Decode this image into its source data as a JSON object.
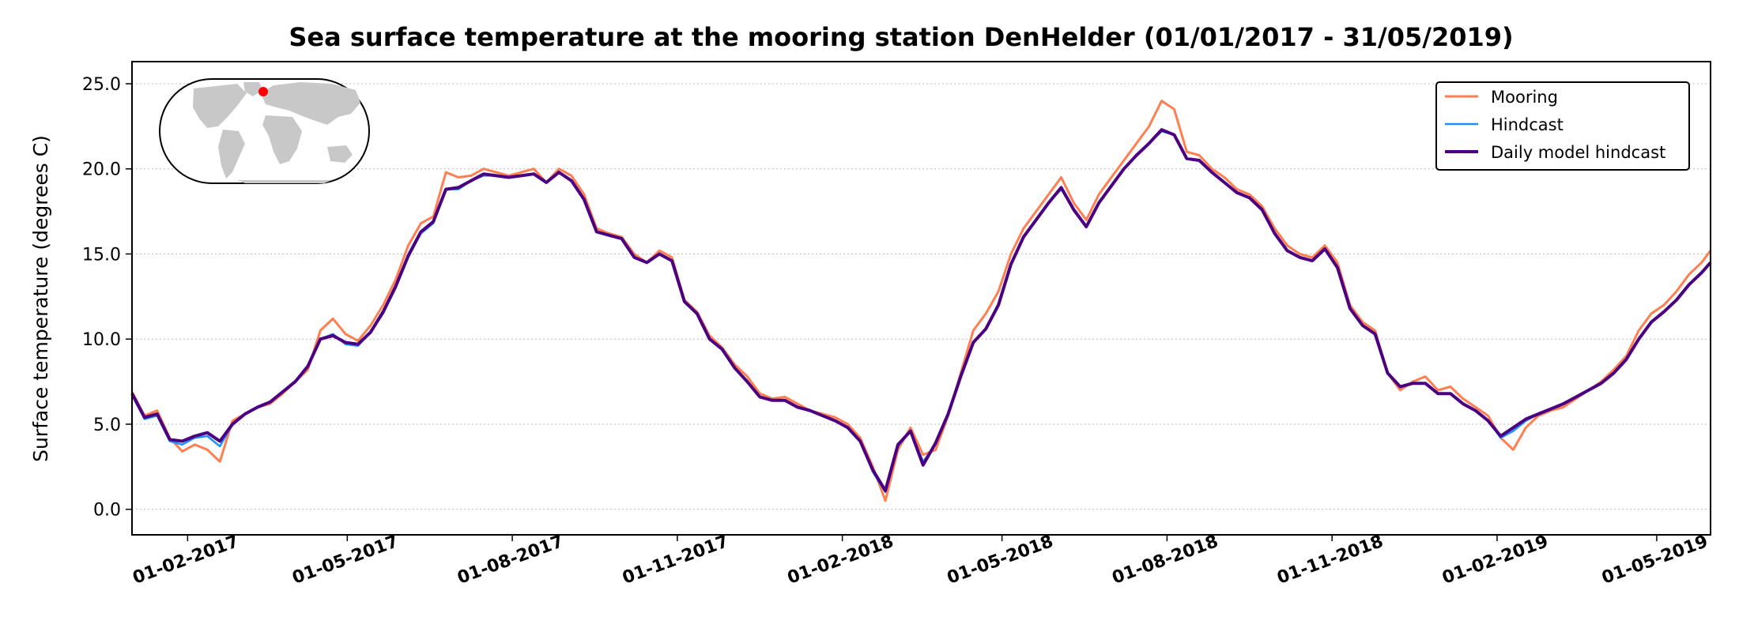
{
  "chart_data": {
    "type": "line",
    "title": "Sea surface temperature at the mooring station DenHelder (01/01/2017 - 31/05/2019)",
    "xlabel": "",
    "ylabel": "Surface temperature (degrees C)",
    "xlim": [
      "2017-01-01",
      "2019-05-31"
    ],
    "ylim": [
      -1.5,
      26.3
    ],
    "yticks": [
      "0.0",
      "5.0",
      "10.0",
      "15.0",
      "20.0",
      "25.0"
    ],
    "xticks": [
      "01-02-2017",
      "01-05-2017",
      "01-08-2017",
      "01-11-2017",
      "01-02-2018",
      "01-05-2018",
      "01-08-2018",
      "01-11-2018",
      "01-02-2019",
      "01-05-2019"
    ],
    "grid": "horizontal dotted",
    "legend_placement": "top-right",
    "inset": "world map with red marker at station location",
    "colors": {
      "Mooring": "#ff7f50",
      "Hindcast": "#1e90ff",
      "Daily model hindcast": "#4b0082",
      "marker": "#ff0000"
    },
    "x": [
      "2017-01-01",
      "2017-01-08",
      "2017-01-15",
      "2017-01-22",
      "2017-01-29",
      "2017-02-05",
      "2017-02-12",
      "2017-02-19",
      "2017-02-26",
      "2017-03-05",
      "2017-03-12",
      "2017-03-19",
      "2017-03-26",
      "2017-04-02",
      "2017-04-09",
      "2017-04-16",
      "2017-04-23",
      "2017-04-30",
      "2017-05-07",
      "2017-05-14",
      "2017-05-21",
      "2017-05-28",
      "2017-06-04",
      "2017-06-11",
      "2017-06-18",
      "2017-06-25",
      "2017-07-02",
      "2017-07-09",
      "2017-07-16",
      "2017-07-23",
      "2017-07-30",
      "2017-08-06",
      "2017-08-13",
      "2017-08-20",
      "2017-08-27",
      "2017-09-03",
      "2017-09-10",
      "2017-09-17",
      "2017-09-24",
      "2017-10-01",
      "2017-10-08",
      "2017-10-15",
      "2017-10-22",
      "2017-10-29",
      "2017-11-05",
      "2017-11-12",
      "2017-11-19",
      "2017-11-26",
      "2017-12-03",
      "2017-12-10",
      "2017-12-17",
      "2017-12-24",
      "2017-12-31",
      "2018-01-07",
      "2018-01-14",
      "2018-01-21",
      "2018-01-28",
      "2018-02-04",
      "2018-02-11",
      "2018-02-18",
      "2018-02-25",
      "2018-03-04",
      "2018-03-11",
      "2018-03-18",
      "2018-03-25",
      "2018-04-01",
      "2018-04-08",
      "2018-04-15",
      "2018-04-22",
      "2018-04-29",
      "2018-05-06",
      "2018-05-13",
      "2018-05-20",
      "2018-05-27",
      "2018-06-03",
      "2018-06-10",
      "2018-06-17",
      "2018-06-24",
      "2018-07-01",
      "2018-07-08",
      "2018-07-15",
      "2018-07-22",
      "2018-07-29",
      "2018-08-05",
      "2018-08-12",
      "2018-08-19",
      "2018-08-26",
      "2018-09-02",
      "2018-09-09",
      "2018-09-16",
      "2018-09-23",
      "2018-09-30",
      "2018-10-07",
      "2018-10-14",
      "2018-10-21",
      "2018-10-28",
      "2018-11-04",
      "2018-11-11",
      "2018-11-18",
      "2018-11-25",
      "2018-12-02",
      "2018-12-09",
      "2018-12-16",
      "2018-12-23",
      "2018-12-30",
      "2019-01-06",
      "2019-01-13",
      "2019-01-20",
      "2019-01-27",
      "2019-02-03",
      "2019-02-10",
      "2019-02-17",
      "2019-02-24",
      "2019-03-03",
      "2019-03-10",
      "2019-03-17",
      "2019-03-24",
      "2019-03-31",
      "2019-04-07",
      "2019-04-14",
      "2019-04-21",
      "2019-04-28",
      "2019-05-05",
      "2019-05-12",
      "2019-05-19",
      "2019-05-26",
      "2019-05-31"
    ],
    "series": [
      {
        "name": "Mooring",
        "values": [
          6.9,
          5.5,
          5.8,
          4.2,
          3.4,
          3.8,
          3.5,
          2.8,
          5.2,
          5.6,
          6.0,
          6.2,
          6.8,
          7.5,
          8.2,
          10.5,
          11.2,
          10.3,
          9.9,
          10.8,
          12.0,
          13.5,
          15.5,
          16.8,
          17.2,
          19.8,
          19.5,
          19.6,
          20.0,
          19.8,
          19.6,
          19.8,
          20.0,
          19.2,
          20.0,
          19.6,
          18.5,
          16.5,
          16.2,
          16.0,
          15.0,
          14.5,
          15.2,
          14.8,
          12.3,
          11.6,
          10.2,
          9.5,
          8.5,
          7.8,
          6.8,
          6.5,
          6.6,
          6.2,
          5.8,
          5.6,
          5.4,
          5.0,
          4.2,
          2.5,
          0.5,
          3.5,
          4.8,
          3.2,
          3.5,
          5.5,
          8.0,
          10.5,
          11.5,
          12.8,
          15.0,
          16.5,
          17.5,
          18.5,
          19.5,
          18.0,
          17.0,
          18.5,
          19.5,
          20.5,
          21.5,
          22.5,
          24.0,
          23.5,
          21.0,
          20.8,
          20.0,
          19.5,
          18.8,
          18.5,
          17.8,
          16.5,
          15.5,
          15.0,
          14.8,
          15.5,
          14.5,
          12.0,
          11.0,
          10.5,
          8.0,
          7.0,
          7.5,
          7.8,
          7.0,
          7.2,
          6.5,
          6.0,
          5.5,
          4.2,
          3.5,
          4.8,
          5.5,
          5.8,
          6.0,
          6.5,
          7.0,
          7.5,
          8.2,
          9.0,
          10.5,
          11.5,
          12.0,
          12.8,
          13.8,
          14.5,
          15.2
        ]
      },
      {
        "name": "Hindcast",
        "values": [
          6.7,
          5.3,
          5.5,
          4.0,
          3.8,
          4.2,
          4.3,
          3.7,
          5.0,
          5.6,
          6.0,
          6.3,
          6.9,
          7.5,
          8.4,
          10.0,
          10.3,
          9.7,
          9.6,
          10.4,
          11.5,
          13.0,
          14.8,
          16.2,
          16.8,
          18.8,
          18.8,
          19.3,
          19.6,
          19.6,
          19.5,
          19.6,
          19.7,
          19.2,
          19.8,
          19.3,
          18.2,
          16.3,
          16.1,
          15.9,
          14.8,
          14.5,
          15.0,
          14.6,
          12.2,
          11.5,
          10.0,
          9.4,
          8.3,
          7.5,
          6.6,
          6.4,
          6.4,
          6.0,
          5.8,
          5.5,
          5.2,
          4.8,
          4.0,
          2.2,
          1.0,
          3.7,
          4.6,
          2.8,
          3.8,
          5.6,
          7.8,
          9.8,
          10.6,
          12.0,
          14.4,
          16.0,
          17.0,
          18.0,
          18.8,
          17.6,
          16.6,
          18.0,
          19.0,
          20.0,
          20.8,
          21.5,
          22.2,
          22.0,
          20.6,
          20.5,
          19.8,
          19.2,
          18.6,
          18.3,
          17.6,
          16.2,
          15.2,
          14.8,
          14.6,
          15.3,
          14.2,
          11.8,
          10.8,
          10.3,
          8.0,
          7.2,
          7.4,
          7.4,
          6.8,
          6.8,
          6.2,
          5.8,
          5.2,
          4.2,
          4.6,
          5.2,
          5.6,
          5.9,
          6.2,
          6.6,
          7.0,
          7.4,
          8.0,
          8.8,
          10.0,
          11.0,
          11.6,
          12.3,
          13.2,
          13.9,
          14.5
        ]
      },
      {
        "name": "Daily model hindcast",
        "values": [
          6.8,
          5.4,
          5.6,
          4.1,
          4.0,
          4.3,
          4.5,
          4.0,
          5.0,
          5.6,
          6.0,
          6.3,
          6.9,
          7.5,
          8.4,
          10.0,
          10.2,
          9.8,
          9.7,
          10.4,
          11.6,
          13.1,
          14.9,
          16.3,
          16.9,
          18.8,
          18.9,
          19.3,
          19.7,
          19.6,
          19.5,
          19.6,
          19.7,
          19.2,
          19.8,
          19.3,
          18.2,
          16.3,
          16.1,
          15.9,
          14.8,
          14.5,
          15.0,
          14.6,
          12.2,
          11.5,
          10.0,
          9.4,
          8.3,
          7.5,
          6.6,
          6.4,
          6.4,
          6.0,
          5.8,
          5.5,
          5.2,
          4.8,
          4.0,
          2.3,
          1.1,
          3.8,
          4.6,
          2.6,
          3.9,
          5.6,
          7.8,
          9.8,
          10.6,
          12.0,
          14.4,
          16.0,
          17.0,
          18.0,
          18.9,
          17.6,
          16.6,
          18.0,
          19.0,
          20.0,
          20.8,
          21.5,
          22.3,
          22.0,
          20.6,
          20.5,
          19.8,
          19.2,
          18.6,
          18.3,
          17.6,
          16.2,
          15.2,
          14.8,
          14.6,
          15.3,
          14.2,
          11.8,
          10.8,
          10.3,
          8.0,
          7.2,
          7.4,
          7.4,
          6.8,
          6.8,
          6.2,
          5.8,
          5.2,
          4.3,
          4.8,
          5.3,
          5.6,
          5.9,
          6.2,
          6.6,
          7.0,
          7.4,
          8.0,
          8.8,
          10.0,
          11.0,
          11.6,
          12.3,
          13.2,
          13.9,
          14.5
        ]
      }
    ]
  }
}
